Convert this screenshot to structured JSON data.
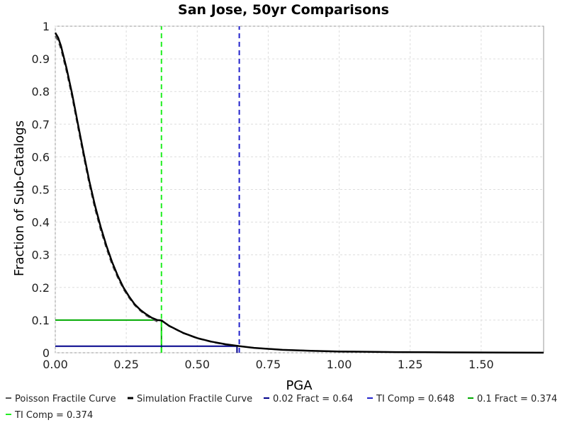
{
  "chart_data": {
    "type": "line",
    "title": "San Jose, 50yr Comparisons",
    "xlabel": "PGA",
    "ylabel": "Fraction of Sub-Catalogs",
    "xlim": [
      0,
      1.72
    ],
    "ylim": [
      0,
      1
    ],
    "xticks": [
      "0.00",
      "0.25",
      "0.50",
      "0.75",
      "1.00",
      "1.25",
      "1.50"
    ],
    "yticks": [
      "0",
      "0.1",
      "0.2",
      "0.3",
      "0.4",
      "0.5",
      "0.6",
      "0.7",
      "0.8",
      "0.9",
      "1"
    ],
    "grid": true,
    "legend_position": "bottom",
    "series": [
      {
        "name": "Poisson Fractile Curve",
        "color": "#555555",
        "style": "dashed",
        "x": [
          0,
          0.01,
          0.02,
          0.04,
          0.06,
          0.08,
          0.1,
          0.12,
          0.14,
          0.16,
          0.18,
          0.2,
          0.22,
          0.24,
          0.26,
          0.28,
          0.3,
          0.32,
          0.34,
          0.36,
          0.374,
          0.4,
          0.45,
          0.5,
          0.55,
          0.6,
          0.65,
          0.7,
          0.8,
          0.9,
          1.0,
          1.1,
          1.2,
          1.3,
          1.4,
          1.5,
          1.6,
          1.72
        ],
        "y": [
          0.97,
          0.955,
          0.93,
          0.86,
          0.78,
          0.69,
          0.6,
          0.515,
          0.44,
          0.375,
          0.32,
          0.27,
          0.23,
          0.195,
          0.168,
          0.145,
          0.128,
          0.114,
          0.104,
          0.095,
          0.1,
          0.082,
          0.06,
          0.044,
          0.033,
          0.025,
          0.02,
          0.015,
          0.009,
          0.006,
          0.004,
          0.003,
          0.002,
          0.0015,
          0.001,
          0.0008,
          0.0005,
          0.0003
        ]
      },
      {
        "name": "Simulation Fractile Curve",
        "color": "#000000",
        "style": "solid",
        "x": [
          0,
          0.01,
          0.02,
          0.04,
          0.06,
          0.08,
          0.1,
          0.12,
          0.14,
          0.16,
          0.18,
          0.2,
          0.22,
          0.24,
          0.26,
          0.28,
          0.3,
          0.32,
          0.34,
          0.36,
          0.374,
          0.4,
          0.45,
          0.5,
          0.55,
          0.6,
          0.65,
          0.7,
          0.8,
          0.9,
          1.0,
          1.1,
          1.2,
          1.3,
          1.4,
          1.5,
          1.6,
          1.72
        ],
        "y": [
          0.98,
          0.965,
          0.94,
          0.87,
          0.79,
          0.7,
          0.61,
          0.525,
          0.45,
          0.385,
          0.328,
          0.278,
          0.236,
          0.2,
          0.172,
          0.148,
          0.131,
          0.118,
          0.107,
          0.1,
          0.099,
          0.083,
          0.061,
          0.045,
          0.034,
          0.026,
          0.02,
          0.015,
          0.009,
          0.006,
          0.004,
          0.003,
          0.002,
          0.0015,
          0.001,
          0.0008,
          0.0005,
          0.0003
        ]
      },
      {
        "name": "0.02 Fract = 0.64",
        "color": "#00008b",
        "style": "solid",
        "x": [
          0,
          0.64,
          0.64
        ],
        "y": [
          0.02,
          0.02,
          0
        ]
      },
      {
        "name": "TI Comp = 0.648",
        "color": "#2222cc",
        "style": "dashed",
        "x": [
          0.648,
          0.648
        ],
        "y": [
          0,
          1
        ]
      },
      {
        "name": "0.1 Fract = 0.374",
        "color": "#00aa00",
        "style": "solid",
        "x": [
          0,
          0.374,
          0.374
        ],
        "y": [
          0.1,
          0.1,
          0
        ]
      },
      {
        "name": "TI Comp = 0.374",
        "color": "#22ee22",
        "style": "dashed",
        "x": [
          0.374,
          0.374
        ],
        "y": [
          0,
          1
        ]
      }
    ]
  }
}
